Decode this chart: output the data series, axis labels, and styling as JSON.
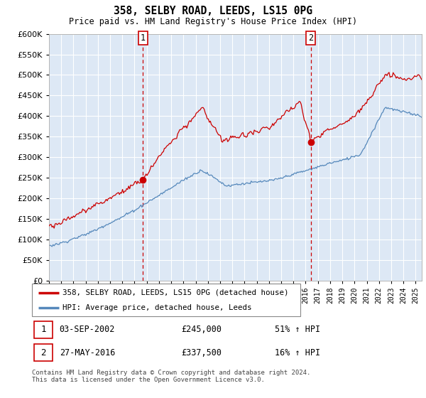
{
  "title": "358, SELBY ROAD, LEEDS, LS15 0PG",
  "subtitle": "Price paid vs. HM Land Registry's House Price Index (HPI)",
  "ylim": [
    0,
    600000
  ],
  "yticks": [
    0,
    50000,
    100000,
    150000,
    200000,
    250000,
    300000,
    350000,
    400000,
    450000,
    500000,
    550000,
    600000
  ],
  "xlim_start": 1995.0,
  "xlim_end": 2025.5,
  "transaction1_date": 2002.67,
  "transaction1_price": 245000,
  "transaction2_date": 2016.42,
  "transaction2_price": 337500,
  "legend_entry1": "358, SELBY ROAD, LEEDS, LS15 0PG (detached house)",
  "legend_entry2": "HPI: Average price, detached house, Leeds",
  "footer": "Contains HM Land Registry data © Crown copyright and database right 2024.\nThis data is licensed under the Open Government Licence v3.0.",
  "line_color_property": "#cc0000",
  "line_color_hpi": "#5588bb",
  "dashed_line_color": "#cc0000",
  "marker_color": "#cc0000",
  "plot_bg_color": "#dde8f5",
  "grid_color": "#ffffff",
  "box_edge_color": "#cc0000",
  "ann_date1": "03-SEP-2002",
  "ann_price1": "£245,000",
  "ann_pct1": "51% ↑ HPI",
  "ann_date2": "27-MAY-2016",
  "ann_price2": "£337,500",
  "ann_pct2": "16% ↑ HPI"
}
